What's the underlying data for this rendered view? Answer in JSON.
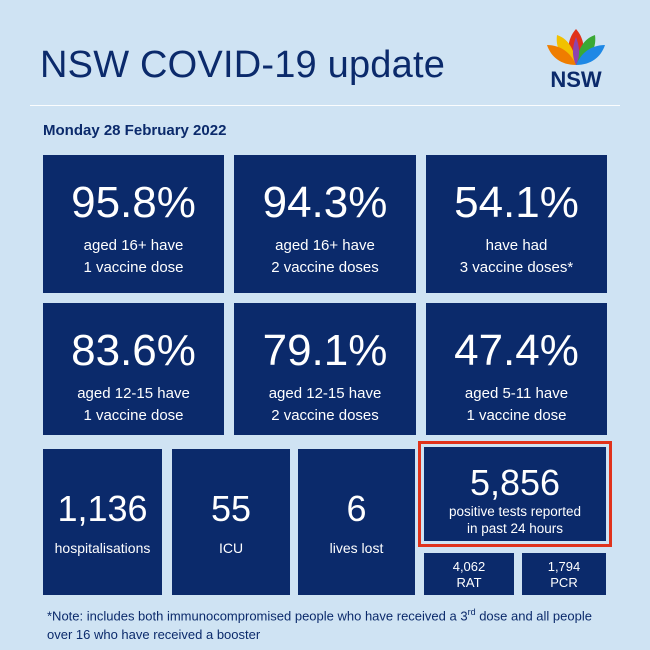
{
  "header": {
    "title": "NSW COVID-19 update",
    "logo_text": "NSW"
  },
  "date": "Monday 28 February 2022",
  "colors": {
    "tile_bg": "#0b2a6b",
    "page_bg": "#cfe3f3",
    "highlight": "#e0321b"
  },
  "tiles_row1": [
    {
      "value": "95.8%",
      "line1": "aged 16+ have",
      "line2": "1 vaccine dose"
    },
    {
      "value": "94.3%",
      "line1": "aged 16+ have",
      "line2": "2 vaccine doses"
    },
    {
      "value": "54.1%",
      "line1": "have had",
      "line2": "3 vaccine doses*"
    }
  ],
  "tiles_row2": [
    {
      "value": "83.6%",
      "line1": "aged 12-15 have",
      "line2": "1 vaccine dose"
    },
    {
      "value": "79.1%",
      "line1": "aged 12-15 have",
      "line2": "2 vaccine doses"
    },
    {
      "value": "47.4%",
      "line1": "aged 5-11 have",
      "line2": "1 vaccine dose"
    }
  ],
  "tiles_row3": [
    {
      "value": "1,136",
      "label": "hospitalisations"
    },
    {
      "value": "55",
      "label": "ICU"
    },
    {
      "value": "6",
      "label": "lives lost"
    }
  ],
  "positive": {
    "value": "5,856",
    "line1": "positive tests reported",
    "line2": "in past 24 hours",
    "rat_value": "4,062",
    "rat_label": "RAT",
    "pcr_value": "1,794",
    "pcr_label": "PCR"
  },
  "note": {
    "part1": "*Note: includes both immunocompromised people who have received a 3",
    "sup": "rd",
    "part2": " dose and all people over 16 who have received a booster"
  }
}
